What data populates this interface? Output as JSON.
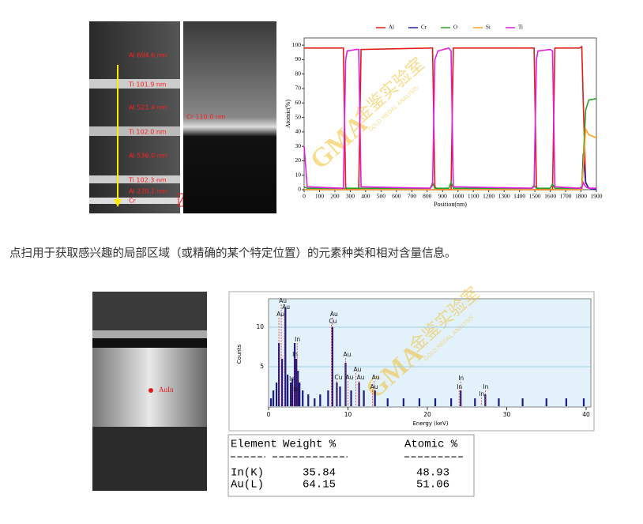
{
  "tem_top": {
    "layers": [
      "Al 694.6 nm",
      "Ti 101.9 nm",
      "Al 521.4 nm",
      "Ti 102.0 nm",
      "Al 536.0 nm",
      "Ti 102.3 nm",
      "Al 220.1 nm",
      "Cr"
    ],
    "cr_label": "Cr 110.0 nm"
  },
  "chart_data": [
    {
      "type": "line",
      "xlabel": "Position(nm)",
      "ylabel": "Atomic(%)",
      "x": [
        0,
        20,
        240,
        255,
        270,
        280,
        340,
        355,
        370,
        820,
        835,
        850,
        870,
        940,
        955,
        970,
        1480,
        1495,
        1510,
        1520,
        1600,
        1615,
        1630,
        1790,
        1805,
        1815,
        1830,
        1850,
        1900
      ],
      "series": [
        {
          "name": "Al",
          "color": "#e41a1c",
          "values": [
            98,
            98,
            98,
            98,
            2,
            0,
            0,
            0,
            97,
            98,
            98,
            2,
            0,
            0,
            0,
            98,
            98,
            98,
            2,
            0,
            0,
            0,
            98,
            98,
            99,
            60,
            5,
            1,
            1
          ]
        },
        {
          "name": "Cr",
          "color": "#1f1fa0",
          "values": [
            0,
            0,
            0,
            0,
            0,
            0,
            0,
            0,
            0,
            0,
            0,
            0,
            0,
            0,
            0,
            0,
            0,
            0,
            0,
            0,
            0,
            0,
            0,
            0,
            0,
            25,
            5,
            1,
            0
          ]
        },
        {
          "name": "O",
          "color": "#2ca02c",
          "values": [
            2,
            1,
            1,
            1,
            1,
            1,
            1,
            1,
            1,
            1,
            5,
            1,
            1,
            1,
            5,
            1,
            1,
            3,
            1,
            1,
            1,
            4,
            1,
            1,
            2,
            20,
            55,
            62,
            63
          ]
        },
        {
          "name": "Si",
          "color": "#ff9f1c",
          "values": [
            0,
            0,
            0,
            0,
            0,
            0,
            0,
            0,
            0,
            0,
            0,
            0,
            0,
            0,
            0,
            0,
            0,
            0,
            0,
            0,
            0,
            0,
            0,
            0,
            0,
            15,
            42,
            38,
            36
          ]
        },
        {
          "name": "Ti",
          "color": "#e01ee0",
          "values": [
            30,
            2,
            1,
            1,
            90,
            96,
            97,
            97,
            2,
            1,
            3,
            90,
            96,
            98,
            96,
            2,
            1,
            2,
            90,
            96,
            97,
            96,
            2,
            1,
            1,
            5,
            2,
            1,
            1
          ]
        }
      ],
      "xlim": [
        0,
        1900
      ],
      "xticks": [
        0,
        100,
        200,
        300,
        400,
        500,
        600,
        700,
        800,
        900,
        1000,
        1100,
        1200,
        1300,
        1400,
        1500,
        1600,
        1700,
        1800,
        1900
      ],
      "ylim": [
        0,
        105
      ],
      "yticks": [
        0,
        10,
        20,
        30,
        40,
        50,
        60,
        70,
        80,
        90,
        100
      ],
      "legend": "top"
    },
    {
      "type": "spectrum",
      "xlabel": "Energy (keV)",
      "ylabel": "Counts",
      "color": "#1a1a80",
      "x": [
        0.3,
        0.6,
        1.0,
        1.3,
        1.7,
        2.12,
        2.4,
        2.8,
        3.0,
        3.29,
        3.5,
        3.7,
        3.9,
        4.3,
        5.0,
        5.8,
        6.5,
        7.5,
        8.05,
        8.6,
        9.0,
        9.7,
        10.4,
        11.4,
        12.0,
        13.4,
        15.0,
        17.0,
        19.0,
        21.0,
        23.0,
        24.2,
        26.0,
        27.3,
        29.0,
        32.0,
        35.0,
        37.5,
        39.7
      ],
      "values": [
        1,
        2,
        3,
        8,
        6,
        12.5,
        4,
        3,
        3.5,
        8,
        6,
        4.5,
        3,
        2,
        1.5,
        1,
        1.5,
        2,
        10,
        3,
        2.5,
        5.5,
        2,
        3,
        2,
        2,
        1,
        1,
        1,
        1,
        1,
        2,
        1,
        1.5,
        1,
        1,
        1,
        1,
        1
      ],
      "peaks": [
        {
          "label": "Au",
          "energy": 1.6
        },
        {
          "label": "Au",
          "energy": 2.0
        },
        {
          "label": "Au",
          "energy": 1.3
        },
        {
          "label": "Au",
          "energy": 8.05
        },
        {
          "label": "Cu",
          "energy": 7.9
        },
        {
          "label": "In",
          "energy": 3.6
        },
        {
          "label": "In",
          "energy": 3.29
        },
        {
          "label": "In",
          "energy": 2.9
        },
        {
          "label": "In",
          "energy": 3.4
        },
        {
          "label": "Au",
          "energy": 9.7
        },
        {
          "label": "Au",
          "energy": 11.0
        },
        {
          "label": "Cu",
          "energy": 8.6
        },
        {
          "label": "Au",
          "energy": 10.0
        },
        {
          "label": "Au",
          "energy": 11.4
        },
        {
          "label": "Au",
          "energy": 13.3
        },
        {
          "label": "Au",
          "energy": 13.1
        },
        {
          "label": "In",
          "energy": 24.2
        },
        {
          "label": "In",
          "energy": 24.0
        },
        {
          "label": "In",
          "energy": 27.3
        },
        {
          "label": "In",
          "energy": 26.8
        }
      ],
      "xlim": [
        0,
        40
      ],
      "xticks": [
        0,
        10,
        20,
        30,
        40
      ],
      "ylim": [
        0,
        13.6
      ],
      "yticks": [
        5,
        10
      ],
      "grid": true
    }
  ],
  "caption": "点扫用于获取感兴趣的局部区域（或精确的某个特定位置）的元素种类和相对含量信息。",
  "point_label": "AuIn",
  "table": {
    "header": [
      "Element",
      "Weight %",
      "Atomic %"
    ],
    "rows": [
      [
        "In(K)",
        "35.84",
        "48.93"
      ],
      [
        "Au(L)",
        "64.15",
        "51.06"
      ]
    ]
  },
  "watermark": {
    "logo": "GMA",
    "name": "金鉴实验室",
    "english": "GOLD MEDAL ANALYSIS"
  }
}
